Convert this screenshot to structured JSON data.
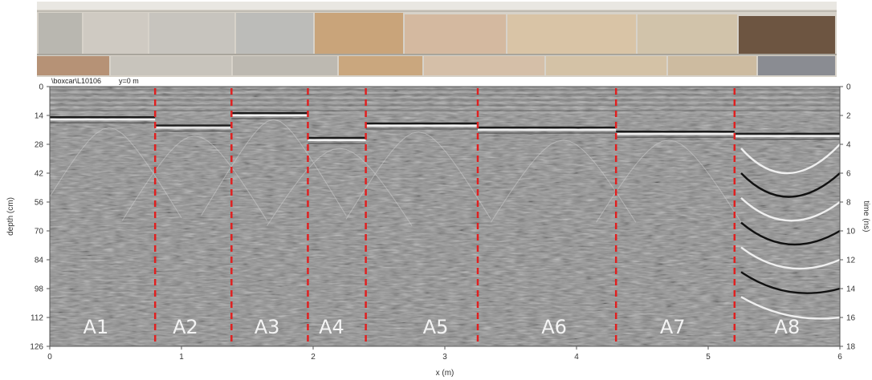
{
  "photo": {
    "caption": ""
  },
  "header": {
    "file_label": "\\boxcar\\L10106",
    "position_label": "y=0 m"
  },
  "chart_data": {
    "type": "heatmap",
    "title": "",
    "xlabel": "x (m)",
    "ylabel_left": "depth (cm)",
    "ylabel_right": "time (ns)",
    "xlim": [
      0,
      6
    ],
    "ylim_left": [
      0,
      126
    ],
    "ylim_right": [
      0,
      18
    ],
    "x_ticks": [
      0,
      1,
      2,
      3,
      4,
      5,
      6
    ],
    "y_left_ticks": [
      0,
      14,
      28,
      42,
      56,
      70,
      84,
      98,
      112,
      126
    ],
    "y_right_ticks": [
      0,
      2,
      4,
      6,
      8,
      10,
      12,
      14,
      16,
      18
    ],
    "divider_positions_m": [
      0.8,
      1.38,
      1.96,
      2.4,
      3.25,
      4.3,
      5.2
    ],
    "divider_color": "#e02020",
    "segments": [
      {
        "label": "A1",
        "x": 0.35
      },
      {
        "label": "A2",
        "x": 1.03
      },
      {
        "label": "A3",
        "x": 1.65
      },
      {
        "label": "A4",
        "x": 2.14
      },
      {
        "label": "A5",
        "x": 2.93
      },
      {
        "label": "A6",
        "x": 3.83
      },
      {
        "label": "A7",
        "x": 4.73
      },
      {
        "label": "A8",
        "x": 5.6
      }
    ],
    "reflector_depths_cm": [
      {
        "x_start": 0.0,
        "x_end": 0.8,
        "depth": 16
      },
      {
        "x_start": 0.8,
        "x_end": 1.38,
        "depth": 20
      },
      {
        "x_start": 1.38,
        "x_end": 1.96,
        "depth": 14
      },
      {
        "x_start": 1.96,
        "x_end": 2.4,
        "depth": 26
      },
      {
        "x_start": 2.4,
        "x_end": 3.25,
        "depth": 19
      },
      {
        "x_start": 3.25,
        "x_end": 4.3,
        "depth": 21
      },
      {
        "x_start": 4.3,
        "x_end": 5.2,
        "depth": 23
      },
      {
        "x_start": 5.2,
        "x_end": 6.0,
        "depth": 24
      }
    ],
    "colormap": "grayscale"
  }
}
